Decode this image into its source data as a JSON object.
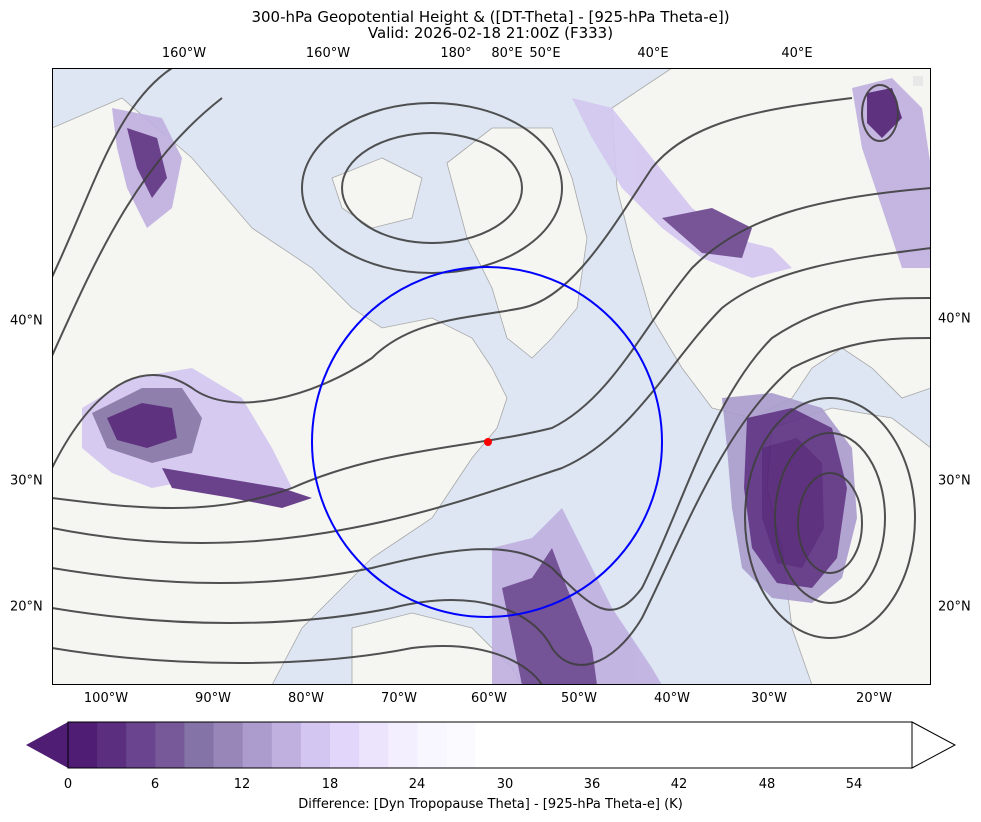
{
  "title_line1": "300-hPa Geopotential Height & ([DT-Theta] - [925-hPa Theta-e])",
  "title_line2": "Valid: 2026-02-18 21:00Z (F333)",
  "top_labels": [
    "160°W",
    "160°W",
    "180°",
    "80°E",
    "50°E",
    "40°E",
    "40°E"
  ],
  "bottom_labels": [
    "100°W",
    "90°W",
    "80°W",
    "70°W",
    "60°W",
    "50°W",
    "40°W",
    "30°W",
    "20°W"
  ],
  "left_labels": [
    "40°N",
    "30°N",
    "20°N"
  ],
  "right_labels": [
    "40°N",
    "30°N",
    "20°N"
  ],
  "colorbar": {
    "label": "Difference: [Dyn Tropopause Theta] - [925-hPa Theta-e] (K)",
    "ticks": [
      "0",
      "6",
      "12",
      "18",
      "24",
      "30",
      "36",
      "42",
      "48",
      "54"
    ],
    "colors": [
      "#4f1d73",
      "#5c2e80",
      "#6a448e",
      "#77599a",
      "#8473a6",
      "#9886b9",
      "#ab9ccd",
      "#c0b0e0",
      "#d3c6f0",
      "#e2d7fa",
      "#ece4fd",
      "#f4effe",
      "#f8f6ff",
      "#fbfbff"
    ]
  },
  "colors": {
    "ocean": "#dde6f2",
    "land": "#f5f5f2",
    "contour": "#3f3f3f",
    "circle": "#0000ff",
    "marker": "#ff0000"
  }
}
